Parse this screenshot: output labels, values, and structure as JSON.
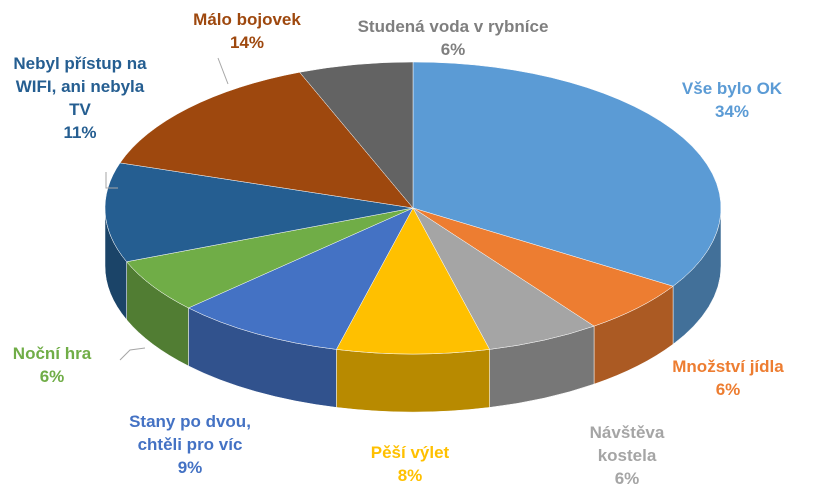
{
  "chart_data": {
    "type": "pie3d",
    "categories": [
      "Vše bylo OK",
      "Množství jídla",
      "Návštěva kostela",
      "Pěší výlet",
      "Stany po dvou, chtěli pro víc",
      "Noční hra",
      "Nebyl přístup na WIFI, ani nebyla TV",
      "Málo bojovek",
      "Studená voda v rybníce"
    ],
    "values": [
      34,
      6,
      6,
      8,
      9,
      6,
      11,
      14,
      6
    ],
    "value_labels": [
      "34%",
      "6%",
      "6%",
      "8%",
      "9%",
      "6%",
      "11%",
      "14%",
      "6%"
    ],
    "colors": [
      "#5b9bd5",
      "#ed7d31",
      "#a5a5a5",
      "#ffc000",
      "#4472c4",
      "#70ad47",
      "#255e91",
      "#9e480e",
      "#636363"
    ]
  }
}
